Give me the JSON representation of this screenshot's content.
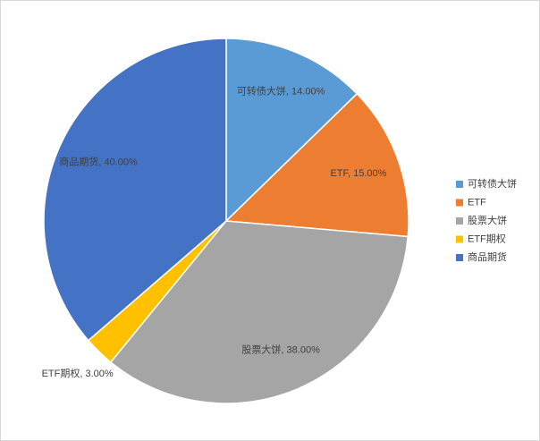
{
  "chart_data": {
    "type": "pie",
    "categories": [
      "可转债大饼",
      "ETF",
      "股票大饼",
      "ETF期权",
      "商品期货"
    ],
    "values": [
      14,
      15,
      38,
      3,
      40
    ],
    "value_labels": [
      "14.00%",
      "15.00%",
      "38.00%",
      "3.00%",
      "40.00%"
    ],
    "label_separator": ", ",
    "colors": [
      "#5b9bd5",
      "#ed7d31",
      "#a5a5a5",
      "#ffc000",
      "#4472c4"
    ],
    "legend": "right"
  }
}
